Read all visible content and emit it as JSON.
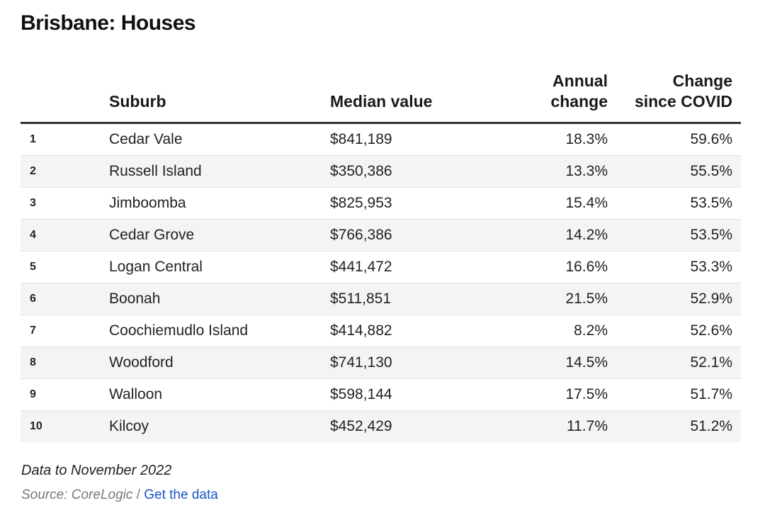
{
  "chart_data": {
    "type": "table",
    "title": "Brisbane: Houses",
    "columns": {
      "rank": "",
      "suburb": "Suburb",
      "median": "Median value",
      "annual_line1": "Annual",
      "annual_line2": "change",
      "covid_line1": "Change",
      "covid_line2": "since COVID"
    },
    "rows": [
      {
        "rank": "1",
        "suburb": "Cedar Vale",
        "median": "$841,189",
        "annual": "18.3%",
        "covid": "59.6%"
      },
      {
        "rank": "2",
        "suburb": "Russell Island",
        "median": "$350,386",
        "annual": "13.3%",
        "covid": "55.5%"
      },
      {
        "rank": "3",
        "suburb": "Jimboomba",
        "median": "$825,953",
        "annual": "15.4%",
        "covid": "53.5%"
      },
      {
        "rank": "4",
        "suburb": "Cedar Grove",
        "median": "$766,386",
        "annual": "14.2%",
        "covid": "53.5%"
      },
      {
        "rank": "5",
        "suburb": "Logan Central",
        "median": "$441,472",
        "annual": "16.6%",
        "covid": "53.3%"
      },
      {
        "rank": "6",
        "suburb": "Boonah",
        "median": "$511,851",
        "annual": "21.5%",
        "covid": "52.9%"
      },
      {
        "rank": "7",
        "suburb": "Coochiemudlo Island",
        "median": "$414,882",
        "annual": "8.2%",
        "covid": "52.6%"
      },
      {
        "rank": "8",
        "suburb": "Woodford",
        "median": "$741,130",
        "annual": "14.5%",
        "covid": "52.1%"
      },
      {
        "rank": "9",
        "suburb": "Walloon",
        "median": "$598,144",
        "annual": "17.5%",
        "covid": "51.7%"
      },
      {
        "rank": "10",
        "suburb": "Kilcoy",
        "median": "$452,429",
        "annual": "11.7%",
        "covid": "51.2%"
      }
    ],
    "note": "Data to November 2022",
    "source_text": "Source: CoreLogic",
    "source_separator": "/",
    "source_link": "Get the data"
  }
}
